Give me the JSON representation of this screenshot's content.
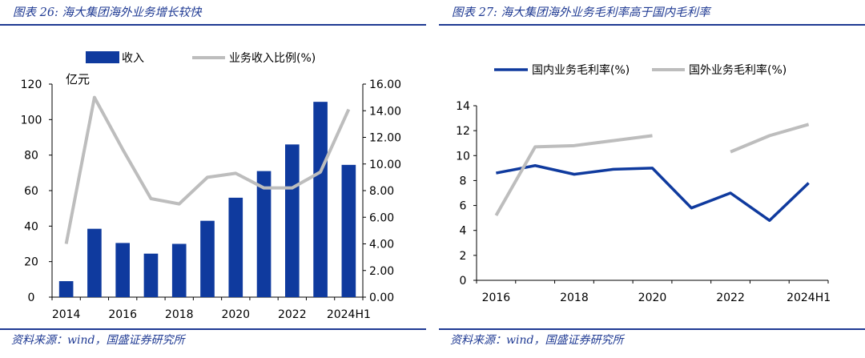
{
  "left_panel": {
    "title": "图表 26:  海大集团海外业务增长较快",
    "source": "资料来源：wind，国盛证券研究所"
  },
  "right_panel": {
    "title": "图表 27:  海大集团海外业务毛利率高于国内毛利率",
    "source": "资料来源：wind，国盛证券研究所"
  },
  "chart_data": [
    {
      "type": "bar",
      "unit_label": "亿元",
      "categories": [
        "2014",
        "2015",
        "2016",
        "2017",
        "2018",
        "2019",
        "2020",
        "2021",
        "2022",
        "2023",
        "2024H1"
      ],
      "x_tick_labels": [
        "2014",
        "2016",
        "2018",
        "2020",
        "2022",
        "2024H1"
      ],
      "y_left_ticks": [
        "0",
        "20",
        "40",
        "60",
        "80",
        "100",
        "120"
      ],
      "y_right_ticks": [
        "0.00",
        "2.00",
        "4.00",
        "6.00",
        "8.00",
        "10.00",
        "12.00",
        "14.00",
        "16.00"
      ],
      "ylim_left": [
        0,
        120
      ],
      "ylim_right": [
        0,
        16
      ],
      "legend_position": "top",
      "series": [
        {
          "name": "收入",
          "kind": "bar",
          "axis": "left",
          "color": "#0f3a9e",
          "values": [
            9,
            38.5,
            30.5,
            24.5,
            30,
            43,
            56,
            71,
            86,
            110,
            74.5
          ]
        },
        {
          "name": "业务收入比例(%)",
          "kind": "line",
          "axis": "right",
          "color": "#bdbdbd",
          "values": [
            4.0,
            15.0,
            11.1,
            7.4,
            7.0,
            9.0,
            9.3,
            8.2,
            8.2,
            9.4,
            14.1
          ]
        }
      ]
    },
    {
      "type": "line",
      "categories": [
        "2016",
        "2017",
        "2018",
        "2019",
        "2020",
        "2021",
        "2022",
        "2023",
        "2024H1"
      ],
      "x_tick_labels": [
        "2016",
        "2018",
        "2020",
        "2022",
        "2024H1"
      ],
      "y_ticks": [
        "0",
        "2",
        "4",
        "6",
        "8",
        "10",
        "12",
        "14"
      ],
      "ylim": [
        0,
        14
      ],
      "legend_position": "top",
      "series": [
        {
          "name": "国内业务毛利率(%)",
          "color": "#0f3a9e",
          "values": [
            8.6,
            9.2,
            8.5,
            8.9,
            9.0,
            5.8,
            7.0,
            4.8,
            7.8
          ]
        },
        {
          "name": "国外业务毛利率(%)",
          "color": "#bdbdbd",
          "values": [
            5.2,
            10.7,
            10.8,
            11.2,
            11.6,
            null,
            10.3,
            11.6,
            12.5
          ]
        }
      ]
    }
  ]
}
